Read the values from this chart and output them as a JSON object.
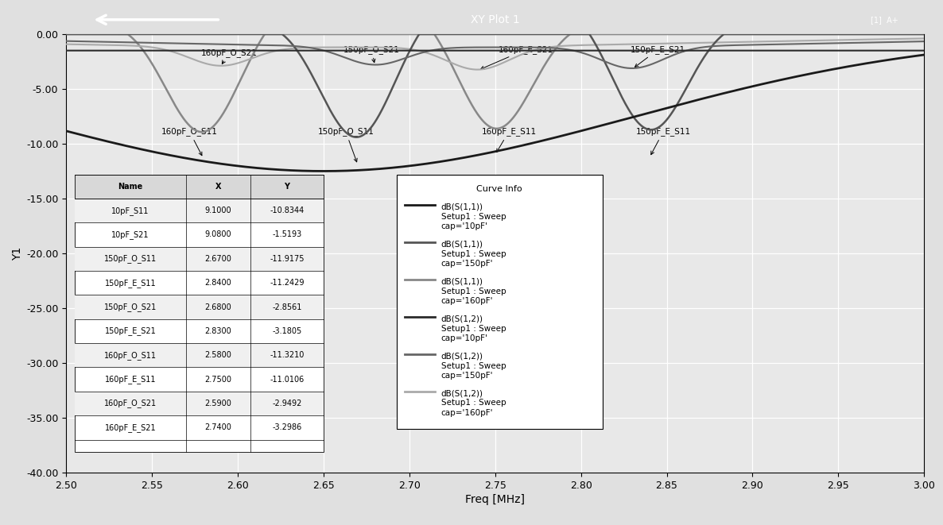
{
  "title": "XY Plot 1",
  "xlabel": "Freq [MHz]",
  "ylabel": "Y1",
  "xlim": [
    2.5,
    3.0
  ],
  "ylim": [
    -40.0,
    0.0
  ],
  "xticks": [
    2.5,
    2.55,
    2.6,
    2.65,
    2.7,
    2.75,
    2.8,
    2.85,
    2.9,
    2.95,
    3.0
  ],
  "yticks": [
    0.0,
    -5.0,
    -10.0,
    -15.0,
    -20.0,
    -25.0,
    -30.0,
    -35.0,
    -40.0
  ],
  "bg_color": "#e0e0e0",
  "plot_bg_color": "#e8e8e8",
  "grid_color": "#ffffff",
  "table_data": {
    "headers": [
      "Name",
      "X",
      "Y"
    ],
    "rows": [
      [
        "10pF_S11",
        "9.1000",
        "-10.8344"
      ],
      [
        "10pF_S21",
        "9.0800",
        "-1.5193"
      ],
      [
        "150pF_O_S11",
        "2.6700",
        "-11.9175"
      ],
      [
        "150pF_E_S11",
        "2.8400",
        "-11.2429"
      ],
      [
        "150pF_O_S21",
        "2.6800",
        "-2.8561"
      ],
      [
        "150pF_E_S21",
        "2.8300",
        "-3.1805"
      ],
      [
        "160pF_O_S11",
        "2.5800",
        "-11.3210"
      ],
      [
        "160pF_E_S11",
        "2.7500",
        "-11.0106"
      ],
      [
        "160pF_O_S21",
        "2.5900",
        "-2.9492"
      ],
      [
        "160pF_E_S21",
        "2.7400",
        "-3.2986"
      ]
    ]
  },
  "curve_colors": {
    "s11_10pF": "#1a1a1a",
    "s11_150pF": "#555555",
    "s11_160pF": "#888888",
    "s21_10pF": "#2a2a2a",
    "s21_150pF": "#666666",
    "s21_160pF": "#aaaaaa"
  },
  "legend_entries": [
    {
      "line1": "dB(S(1,1))",
      "line2": "Setup1 : Sweep",
      "line3": "cap='10pF'",
      "color": "#1a1a1a"
    },
    {
      "line1": "dB(S(1,1))",
      "line2": "Setup1 : Sweep",
      "line3": "cap='150pF'",
      "color": "#555555"
    },
    {
      "line1": "dB(S(1,1))",
      "line2": "Setup1 : Sweep",
      "line3": "cap='160pF'",
      "color": "#888888"
    },
    {
      "line1": "dB(S(1,2))",
      "line2": "Setup1 : Sweep",
      "line3": "cap='10pF'",
      "color": "#2a2a2a"
    },
    {
      "line1": "dB(S(1,2))",
      "line2": "Setup1 : Sweep",
      "line3": "cap='150pF'",
      "color": "#666666"
    },
    {
      "line1": "dB(S(1,2))",
      "line2": "Setup1 : Sweep",
      "line3": "cap='160pF'",
      "color": "#aaaaaa"
    }
  ]
}
